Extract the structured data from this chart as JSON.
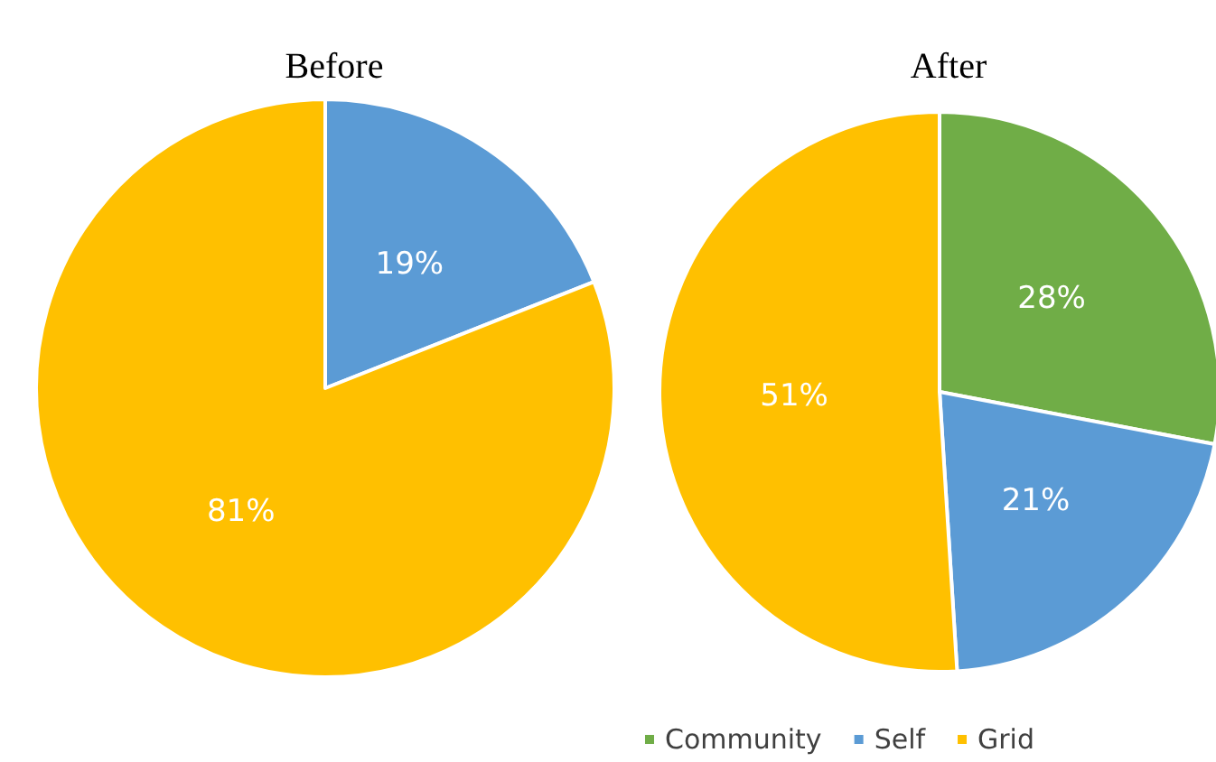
{
  "chart_data": [
    {
      "type": "pie",
      "title": "Before",
      "categories": [
        null,
        null
      ],
      "values": [
        19,
        81
      ],
      "colors": [
        "#5b9bd5",
        "#ffc000"
      ],
      "value_labels": [
        "19%",
        "81%"
      ]
    },
    {
      "type": "pie",
      "title": "After",
      "categories": [
        "Community",
        "Self",
        "Grid"
      ],
      "values": [
        28,
        21,
        51
      ],
      "colors": [
        "#70ad47",
        "#5b9bd5",
        "#ffc000"
      ],
      "value_labels": [
        "28%",
        "21%",
        "51%"
      ],
      "legend": "bottom"
    }
  ]
}
